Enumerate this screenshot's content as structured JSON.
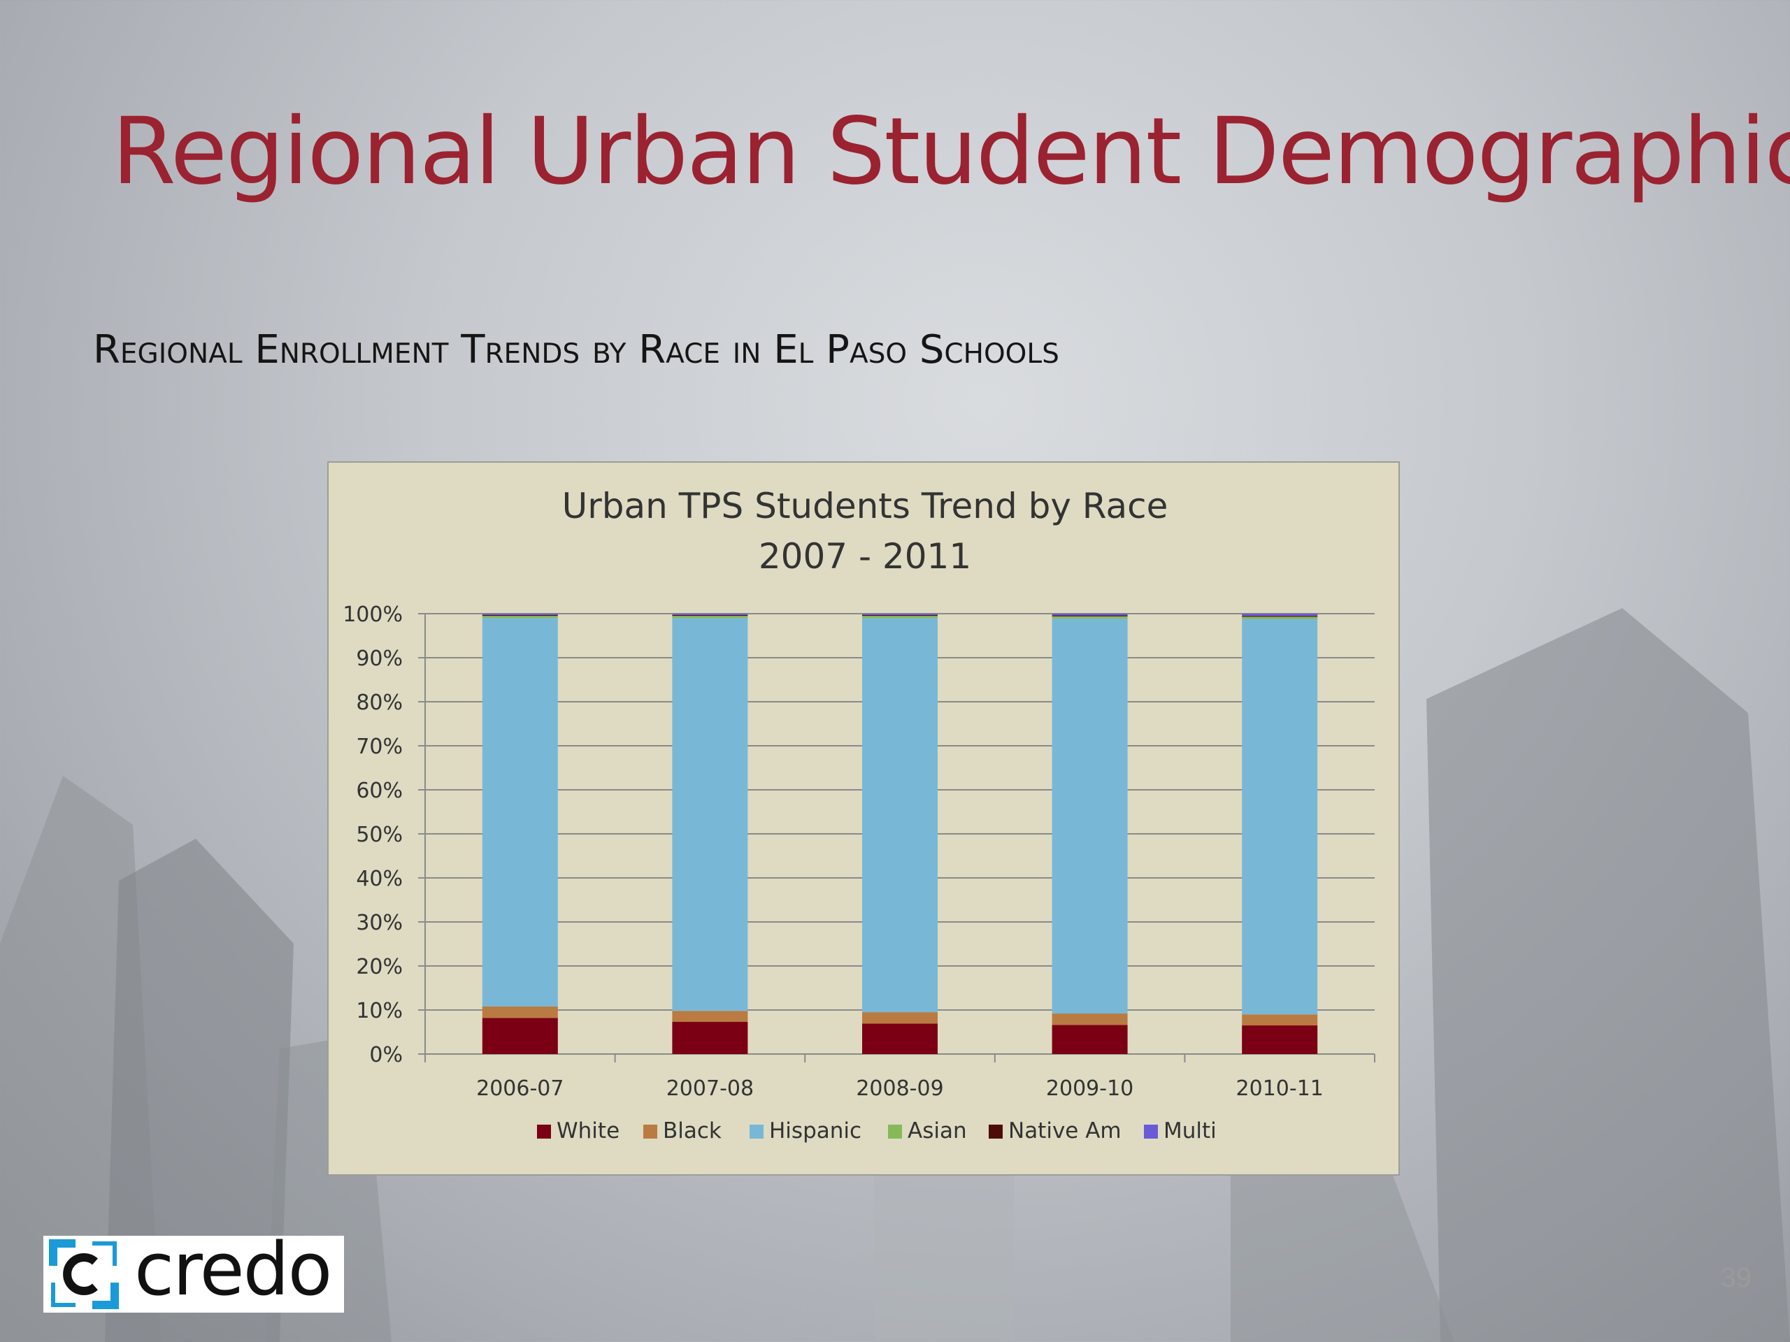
{
  "slide": {
    "title": "Regional Urban Student Demographics",
    "subtitle": "Regional Enrollment Trends by Race in El Paso Schools",
    "page_number": "39",
    "logo_text": "credo"
  },
  "colors": {
    "title": "#9b2230",
    "panel": "#dedbc2",
    "White": "#7b0013",
    "Black": "#b97b42",
    "Hispanic": "#78b8d6",
    "Asian": "#86b95a",
    "Native Am": "#4d0c0a",
    "Multi": "#6a5ad8"
  },
  "chart_data": {
    "type": "bar",
    "stacked": true,
    "percent_stacked": true,
    "title": "Urban TPS Students Trend by Race",
    "subtitle": "2007 - 2011",
    "xlabel": "",
    "ylabel": "",
    "ylim": [
      0,
      100
    ],
    "yticks": [
      "0%",
      "10%",
      "20%",
      "30%",
      "40%",
      "50%",
      "60%",
      "70%",
      "80%",
      "90%",
      "100%"
    ],
    "grid": true,
    "legend": "bottom",
    "categories": [
      "2006-07",
      "2007-08",
      "2008-09",
      "2009-10",
      "2010-11"
    ],
    "series": [
      {
        "name": "White",
        "values": [
          8.2,
          7.3,
          6.9,
          6.6,
          6.5
        ]
      },
      {
        "name": "Black",
        "values": [
          2.6,
          2.5,
          2.6,
          2.6,
          2.5
        ]
      },
      {
        "name": "Hispanic",
        "values": [
          88.2,
          89.2,
          89.5,
          89.7,
          89.8
        ]
      },
      {
        "name": "Asian",
        "values": [
          0.5,
          0.5,
          0.5,
          0.5,
          0.5
        ]
      },
      {
        "name": "Native Am",
        "values": [
          0.2,
          0.2,
          0.2,
          0.2,
          0.2
        ]
      },
      {
        "name": "Multi",
        "values": [
          0.3,
          0.3,
          0.3,
          0.4,
          0.5
        ]
      }
    ]
  }
}
